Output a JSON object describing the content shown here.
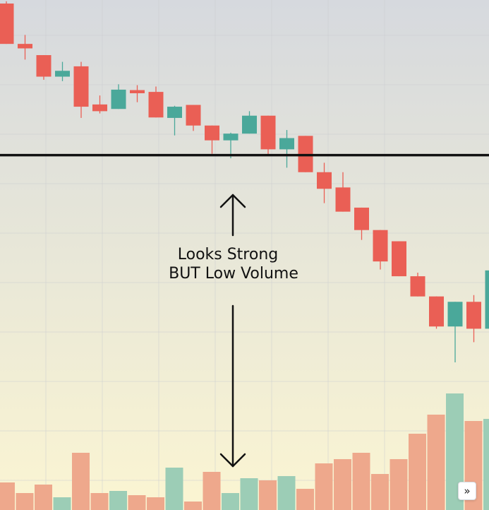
{
  "chart_data": {
    "type": "candlestick",
    "title": "",
    "xlabel": "",
    "ylabel": "",
    "ylim": [
      0,
      100
    ],
    "volume_ylim": [
      0,
      100
    ],
    "grid": true,
    "colors": {
      "up": "#4aa89a",
      "down": "#ea5f55",
      "volume_up": "#9ccdb6",
      "volume_down": "#eea88c",
      "support_line": "#111111",
      "background_top": "#d6d9de",
      "background_bottom": "#fbf5d2"
    },
    "candles": [
      {
        "o": 100.0,
        "h": 100.5,
        "l": 91.0,
        "c": 91.0,
        "v": 13
      },
      {
        "o": 91.0,
        "h": 93.0,
        "l": 87.5,
        "c": 90.0,
        "v": 8
      },
      {
        "o": 88.5,
        "h": 88.5,
        "l": 83.0,
        "c": 83.7,
        "v": 12
      },
      {
        "o": 83.7,
        "h": 87.0,
        "l": 82.7,
        "c": 85.0,
        "v": 6
      },
      {
        "o": 86.0,
        "h": 87.0,
        "l": 74.5,
        "c": 77.0,
        "v": 27
      },
      {
        "o": 77.5,
        "h": 79.5,
        "l": 75.5,
        "c": 76.0,
        "v": 8
      },
      {
        "o": 76.5,
        "h": 82.0,
        "l": 76.5,
        "c": 80.8,
        "v": 9
      },
      {
        "o": 80.7,
        "h": 81.8,
        "l": 78.0,
        "c": 80.0,
        "v": 7
      },
      {
        "o": 80.3,
        "h": 81.5,
        "l": 74.6,
        "c": 74.6,
        "v": 6
      },
      {
        "o": 74.5,
        "h": 77.2,
        "l": 70.6,
        "c": 77.0,
        "v": 20
      },
      {
        "o": 77.4,
        "h": 77.4,
        "l": 71.6,
        "c": 72.8,
        "v": 4
      },
      {
        "o": 72.8,
        "h": 72.8,
        "l": 66.5,
        "c": 69.5,
        "v": 18
      },
      {
        "o": 69.5,
        "h": 71.2,
        "l": 65.5,
        "c": 71.0,
        "v": 8
      },
      {
        "o": 71.0,
        "h": 76.0,
        "l": 71.0,
        "c": 75.0,
        "v": 15
      },
      {
        "o": 75.0,
        "h": 75.0,
        "l": 66.0,
        "c": 67.5,
        "v": 14
      },
      {
        "o": 67.5,
        "h": 71.8,
        "l": 63.4,
        "c": 70.0,
        "v": 16
      },
      {
        "o": 70.5,
        "h": 70.5,
        "l": 62.4,
        "c": 62.4,
        "v": 10
      },
      {
        "o": 62.4,
        "h": 64.5,
        "l": 55.5,
        "c": 58.7,
        "v": 22
      },
      {
        "o": 59.0,
        "h": 62.4,
        "l": 53.6,
        "c": 53.6,
        "v": 24
      },
      {
        "o": 54.5,
        "h": 54.5,
        "l": 47.3,
        "c": 49.5,
        "v": 27
      },
      {
        "o": 49.5,
        "h": 49.5,
        "l": 40.7,
        "c": 42.5,
        "v": 17
      },
      {
        "o": 47.0,
        "h": 47.0,
        "l": 39.2,
        "c": 39.2,
        "v": 24
      },
      {
        "o": 39.2,
        "h": 40.0,
        "l": 34.7,
        "c": 34.7,
        "v": 36
      },
      {
        "o": 34.7,
        "h": 34.7,
        "l": 27.5,
        "c": 28.0,
        "v": 45
      },
      {
        "o": 28.0,
        "h": 33.5,
        "l": 20.0,
        "c": 33.5,
        "v": 55
      },
      {
        "o": 33.5,
        "h": 35.0,
        "l": 24.5,
        "c": 27.5,
        "v": 42
      },
      {
        "o": 27.5,
        "h": 41.5,
        "l": 27.5,
        "c": 40.5,
        "v": 43
      }
    ],
    "support_level": 66.2,
    "annotations": [
      {
        "id": "arrow-up",
        "type": "arrow",
        "direction": "up"
      },
      {
        "id": "arrow-down",
        "type": "arrow",
        "direction": "down"
      }
    ]
  },
  "annotation": {
    "line1": "Looks Strong",
    "line2": "BUT Low Volume"
  },
  "scroll_button": {
    "label": "»"
  }
}
